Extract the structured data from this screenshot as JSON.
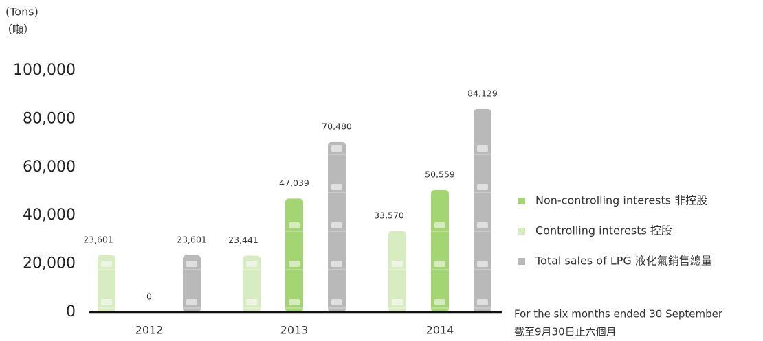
{
  "chart_data": {
    "type": "bar",
    "y_unit_labels": [
      "(Tons)",
      "（噸）"
    ],
    "categories": [
      "2012",
      "2013",
      "2014"
    ],
    "series": [
      {
        "name": "Controlling interests 控股",
        "color": "#d8ecc2",
        "values": [
          23601,
          23441,
          33570
        ],
        "value_labels": [
          "23,601",
          "23,441",
          "33,570"
        ]
      },
      {
        "name": "Non-controlling interests 非控股",
        "color": "#a3d672",
        "values": [
          0,
          47039,
          50559
        ],
        "value_labels": [
          "0",
          "47,039",
          "50,559"
        ]
      },
      {
        "name": "Total sales of LPG 液化氣銷售總量",
        "color": "#b9b9b9",
        "values": [
          23601,
          70480,
          84129
        ],
        "value_labels": [
          "23,601",
          "70,480",
          "84,129"
        ]
      }
    ],
    "ylim": [
      0,
      100000
    ],
    "yticks": [
      0,
      {
        "value": 20000,
        "label": "20,000"
      },
      {
        "value": 40000,
        "label": "40,000"
      },
      {
        "value": 60000,
        "label": "60,000"
      },
      {
        "value": 80000,
        "label": "80,000"
      },
      {
        "value": 100000,
        "label": "100,000"
      }
    ],
    "footnote": [
      "For the six months ended 30 September",
      "截至9月30日止六個月"
    ]
  }
}
